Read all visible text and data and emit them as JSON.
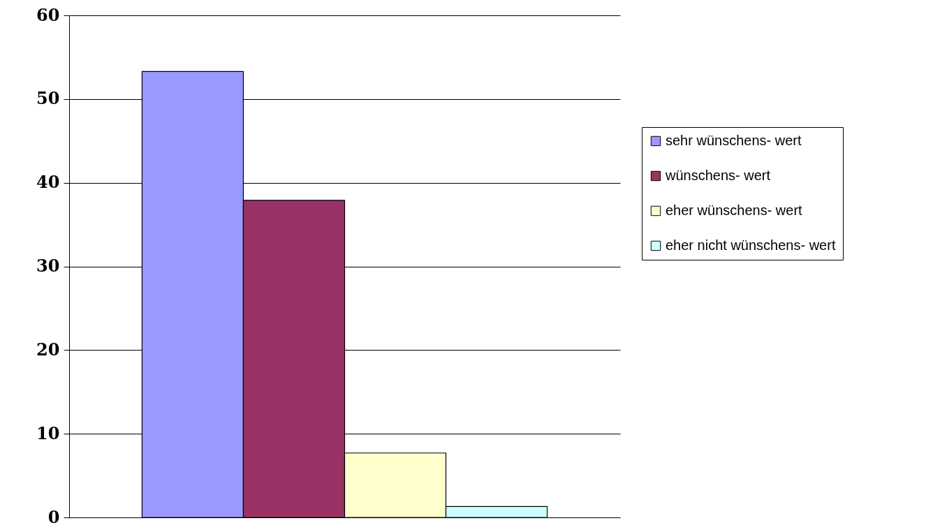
{
  "chart_data": {
    "type": "bar",
    "categories": [
      null
    ],
    "series": [
      {
        "name": "sehr wünschens- wert",
        "color": "#9999ff",
        "values": [
          53.3
        ]
      },
      {
        "name": "wünschens- wert",
        "color": "#993366",
        "values": [
          37.9
        ]
      },
      {
        "name": "eher wünschens- wert",
        "color": "#ffffcc",
        "values": [
          7.7
        ]
      },
      {
        "name": "eher nicht wünschens- wert",
        "color": "#ccffff",
        "values": [
          1.3
        ]
      }
    ],
    "ylim": [
      0,
      60
    ],
    "yticks": [
      0,
      10,
      20,
      30,
      40,
      50,
      60
    ],
    "grid": "y",
    "legend": "right"
  }
}
